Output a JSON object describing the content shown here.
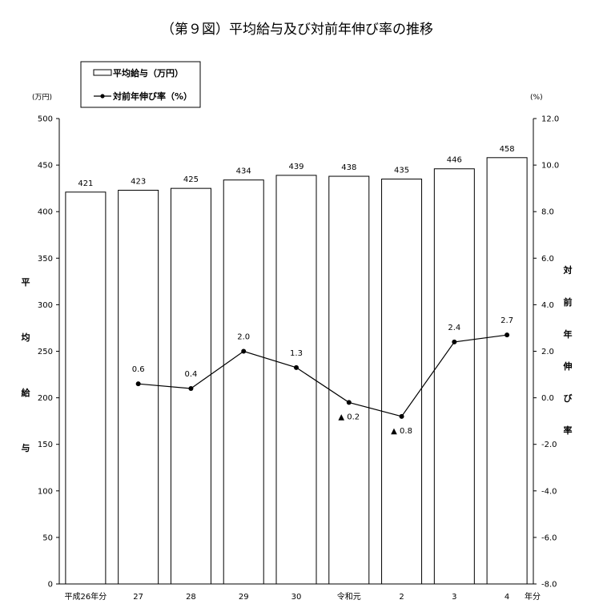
{
  "chart_data": {
    "type": "bar+line",
    "title": "（第９図）平均給与及び対前年伸び率の推移",
    "categories": [
      "平成26年分",
      "27",
      "28",
      "29",
      "30",
      "令和元",
      "2",
      "3",
      "4"
    ],
    "x_unit_suffix": "年分",
    "series": [
      {
        "name": "平均給与（万円）",
        "type": "bar",
        "axis": "left",
        "values": [
          421,
          423,
          425,
          434,
          439,
          438,
          435,
          446,
          458
        ]
      },
      {
        "name": "対前年伸び率（%）",
        "type": "line",
        "axis": "right",
        "values": [
          null,
          0.6,
          0.4,
          2.0,
          1.3,
          -0.2,
          -0.8,
          2.4,
          2.7
        ]
      }
    ],
    "bar_labels": [
      "421",
      "423",
      "425",
      "434",
      "439",
      "438",
      "435",
      "446",
      "458"
    ],
    "line_labels": [
      "",
      "0.6",
      "0.4",
      "2.0",
      "1.3",
      "▲ 0.2",
      "▲ 0.8",
      "2.4",
      "2.7"
    ],
    "left_axis": {
      "unit": "(万円)",
      "label": "平均給与",
      "ylim": [
        0,
        500
      ],
      "ticks": [
        0,
        50,
        100,
        150,
        200,
        250,
        300,
        350,
        400,
        450,
        500
      ]
    },
    "right_axis": {
      "unit": "(%)",
      "label": "対前年伸び率",
      "ylim": [
        -8,
        12
      ],
      "ticks": [
        "-8.0",
        "-6.0",
        "-4.0",
        "-2.0",
        "0.0",
        "2.0",
        "4.0",
        "6.0",
        "8.0",
        "10.0",
        "12.0"
      ]
    },
    "legend": {
      "position": "top-left",
      "bar_label": "平均給与（万円）",
      "line_label": "対前年伸び率（%）"
    },
    "grid": false
  }
}
